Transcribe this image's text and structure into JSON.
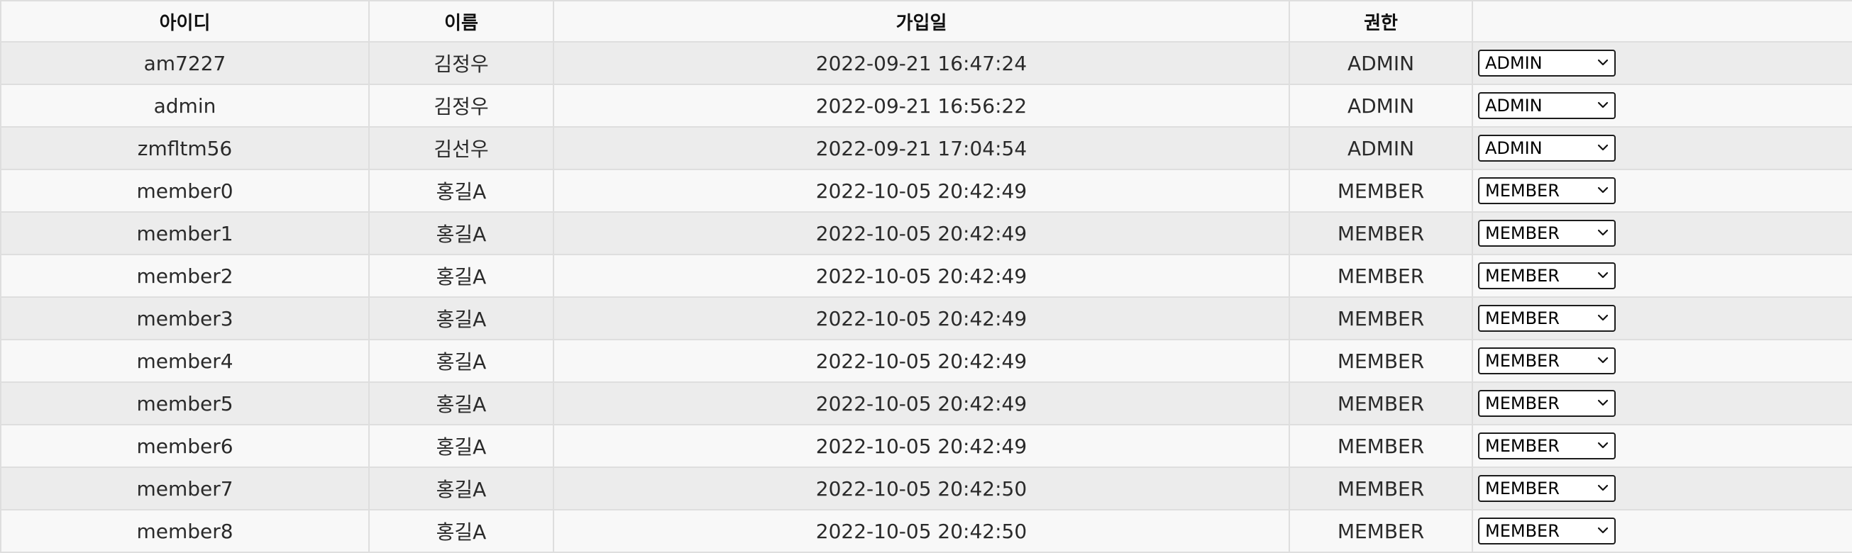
{
  "table": {
    "headers": {
      "id": "아이디",
      "name": "이름",
      "joined": "가입일",
      "role": "권한",
      "action": ""
    },
    "rows": [
      {
        "id": "am7227",
        "name": "김정우",
        "joined": "2022-09-21 16:47:24",
        "role": "ADMIN",
        "selected_role": "ADMIN"
      },
      {
        "id": "admin",
        "name": "김정우",
        "joined": "2022-09-21 16:56:22",
        "role": "ADMIN",
        "selected_role": "ADMIN"
      },
      {
        "id": "zmfltm56",
        "name": "김선우",
        "joined": "2022-09-21 17:04:54",
        "role": "ADMIN",
        "selected_role": "ADMIN"
      },
      {
        "id": "member0",
        "name": "홍길A",
        "joined": "2022-10-05 20:42:49",
        "role": "MEMBER",
        "selected_role": "MEMBER"
      },
      {
        "id": "member1",
        "name": "홍길A",
        "joined": "2022-10-05 20:42:49",
        "role": "MEMBER",
        "selected_role": "MEMBER"
      },
      {
        "id": "member2",
        "name": "홍길A",
        "joined": "2022-10-05 20:42:49",
        "role": "MEMBER",
        "selected_role": "MEMBER"
      },
      {
        "id": "member3",
        "name": "홍길A",
        "joined": "2022-10-05 20:42:49",
        "role": "MEMBER",
        "selected_role": "MEMBER"
      },
      {
        "id": "member4",
        "name": "홍길A",
        "joined": "2022-10-05 20:42:49",
        "role": "MEMBER",
        "selected_role": "MEMBER"
      },
      {
        "id": "member5",
        "name": "홍길A",
        "joined": "2022-10-05 20:42:49",
        "role": "MEMBER",
        "selected_role": "MEMBER"
      },
      {
        "id": "member6",
        "name": "홍길A",
        "joined": "2022-10-05 20:42:49",
        "role": "MEMBER",
        "selected_role": "MEMBER"
      },
      {
        "id": "member7",
        "name": "홍길A",
        "joined": "2022-10-05 20:42:50",
        "role": "MEMBER",
        "selected_role": "MEMBER"
      },
      {
        "id": "member8",
        "name": "홍길A",
        "joined": "2022-10-05 20:42:50",
        "role": "MEMBER",
        "selected_role": "MEMBER"
      }
    ]
  },
  "icons": {
    "select_arrow": "chevron-down-icon"
  },
  "colors": {
    "row_odd": "#ececec",
    "row_even": "#f8f8f8",
    "border": "#dedede",
    "select_border": "#1c1c1c"
  }
}
